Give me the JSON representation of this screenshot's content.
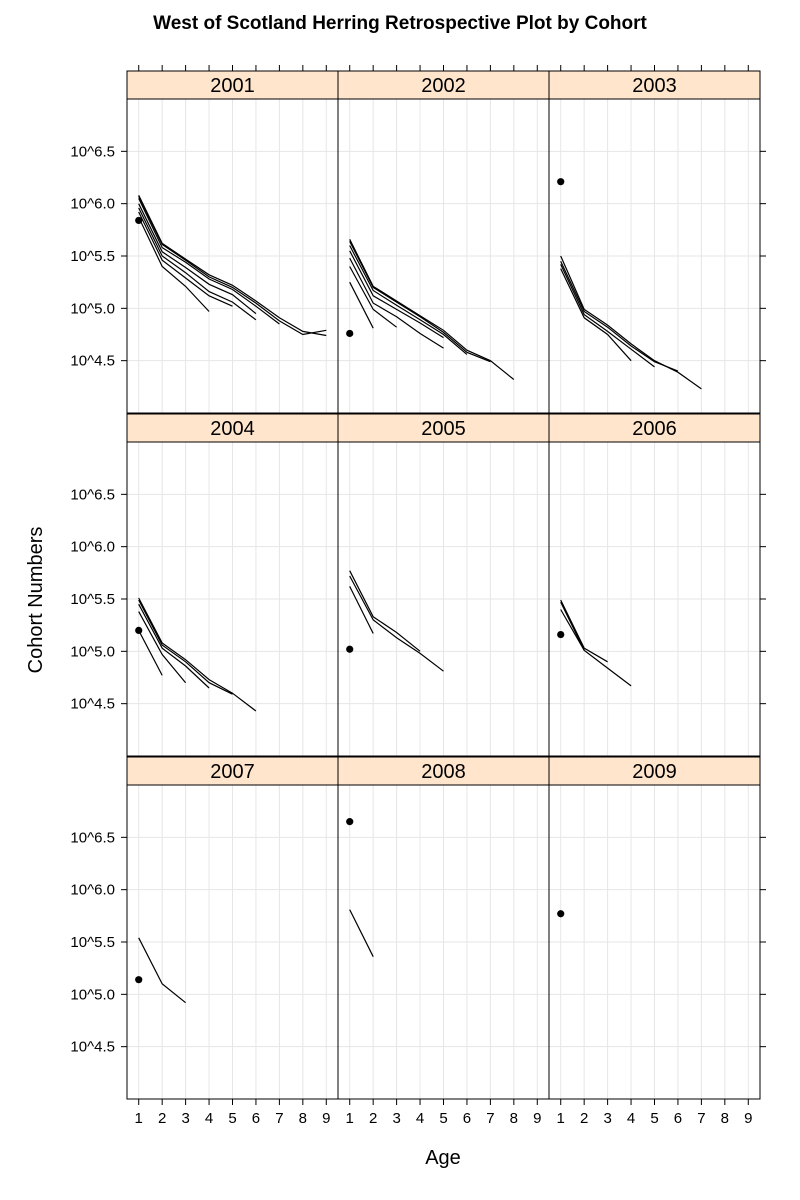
{
  "chart_data": {
    "type": "line",
    "title": "West of Scotland Herring Retrospective Plot by Cohort",
    "xlabel": "Age",
    "ylabel": "Cohort Numbers",
    "x_ticks": [
      1,
      2,
      3,
      4,
      5,
      6,
      7,
      8,
      9
    ],
    "xlim": [
      0.5,
      9.5
    ],
    "y_ticks": [
      4.5,
      5.0,
      5.5,
      6.0,
      6.5
    ],
    "y_tick_labels": [
      "10^4.5",
      "10^5.0",
      "10^5.5",
      "10^6.0",
      "10^6.5"
    ],
    "ylim": [
      4.0,
      7.0
    ],
    "y_scale": "log10",
    "grid": true,
    "colors": {
      "line": "#000000",
      "strip": "#ffe5cc",
      "grid": "#e6e6e6",
      "frame": "#000000"
    },
    "panels": [
      {
        "label": "2001",
        "points": [
          {
            "x": 1,
            "y": 5.84
          }
        ],
        "lines": [
          [
            [
              1,
              6.08
            ],
            [
              2,
              5.62
            ],
            [
              3,
              5.47
            ],
            [
              4,
              5.32
            ],
            [
              5,
              5.22
            ],
            [
              6,
              5.07
            ],
            [
              7,
              4.91
            ],
            [
              8,
              4.78
            ],
            [
              9,
              4.74
            ]
          ],
          [
            [
              1,
              6.07
            ],
            [
              2,
              5.61
            ],
            [
              3,
              5.46
            ],
            [
              4,
              5.3
            ],
            [
              5,
              5.2
            ],
            [
              6,
              5.05
            ],
            [
              7,
              4.88
            ],
            [
              8,
              4.75
            ],
            [
              9,
              4.79
            ]
          ],
          [
            [
              1,
              6.05
            ],
            [
              2,
              5.58
            ],
            [
              3,
              5.44
            ],
            [
              4,
              5.28
            ],
            [
              5,
              5.18
            ],
            [
              6,
              5.02
            ],
            [
              7,
              4.85
            ]
          ],
          [
            [
              1,
              6.0
            ],
            [
              2,
              5.54
            ],
            [
              3,
              5.39
            ],
            [
              4,
              5.23
            ],
            [
              5,
              5.13
            ],
            [
              6,
              4.95
            ]
          ],
          [
            [
              1,
              5.96
            ],
            [
              2,
              5.5
            ],
            [
              3,
              5.34
            ],
            [
              4,
              5.16
            ],
            [
              5,
              5.06
            ],
            [
              6,
              4.89
            ]
          ],
          [
            [
              1,
              5.92
            ],
            [
              2,
              5.46
            ],
            [
              3,
              5.29
            ],
            [
              4,
              5.12
            ],
            [
              5,
              5.02
            ]
          ],
          [
            [
              1,
              5.87
            ],
            [
              2,
              5.4
            ],
            [
              3,
              5.21
            ],
            [
              4,
              4.97
            ]
          ]
        ]
      },
      {
        "label": "2002",
        "points": [
          {
            "x": 1,
            "y": 4.76
          }
        ],
        "lines": [
          [
            [
              1,
              5.66
            ],
            [
              2,
              5.21
            ],
            [
              3,
              5.07
            ],
            [
              4,
              4.93
            ],
            [
              5,
              4.79
            ],
            [
              6,
              4.6
            ],
            [
              7,
              4.5
            ],
            [
              8,
              4.32
            ]
          ],
          [
            [
              1,
              5.64
            ],
            [
              2,
              5.2
            ],
            [
              3,
              5.06
            ],
            [
              4,
              4.92
            ],
            [
              5,
              4.77
            ],
            [
              6,
              4.58
            ],
            [
              7,
              4.49
            ]
          ],
          [
            [
              1,
              5.6
            ],
            [
              2,
              5.17
            ],
            [
              3,
              5.03
            ],
            [
              4,
              4.89
            ],
            [
              5,
              4.75
            ],
            [
              6,
              4.56
            ]
          ],
          [
            [
              1,
              5.55
            ],
            [
              2,
              5.12
            ],
            [
              3,
              4.99
            ],
            [
              4,
              4.86
            ],
            [
              5,
              4.72
            ]
          ],
          [
            [
              1,
              5.48
            ],
            [
              2,
              5.05
            ],
            [
              3,
              4.92
            ],
            [
              4,
              4.76
            ],
            [
              5,
              4.62
            ]
          ],
          [
            [
              1,
              5.4
            ],
            [
              2,
              4.99
            ],
            [
              3,
              4.82
            ]
          ],
          [
            [
              1,
              5.25
            ],
            [
              2,
              4.81
            ]
          ]
        ]
      },
      {
        "label": "2003",
        "points": [
          {
            "x": 1,
            "y": 6.21
          }
        ],
        "lines": [
          [
            [
              1,
              5.5
            ],
            [
              2,
              4.99
            ],
            [
              3,
              4.84
            ],
            [
              4,
              4.66
            ],
            [
              5,
              4.5
            ],
            [
              6,
              4.39
            ],
            [
              7,
              4.23
            ]
          ],
          [
            [
              1,
              5.45
            ],
            [
              2,
              4.97
            ],
            [
              3,
              4.82
            ],
            [
              4,
              4.64
            ],
            [
              5,
              4.49
            ],
            [
              6,
              4.4
            ]
          ],
          [
            [
              1,
              5.42
            ],
            [
              2,
              4.94
            ],
            [
              3,
              4.78
            ],
            [
              4,
              4.61
            ],
            [
              5,
              4.44
            ]
          ],
          [
            [
              1,
              5.38
            ],
            [
              2,
              4.91
            ],
            [
              3,
              4.75
            ],
            [
              4,
              4.5
            ]
          ]
        ]
      },
      {
        "label": "2004",
        "points": [
          {
            "x": 1,
            "y": 5.2
          }
        ],
        "lines": [
          [
            [
              1,
              5.51
            ],
            [
              2,
              5.08
            ],
            [
              3,
              4.92
            ],
            [
              4,
              4.73
            ],
            [
              5,
              4.6
            ],
            [
              6,
              4.43
            ]
          ],
          [
            [
              1,
              5.49
            ],
            [
              2,
              5.06
            ],
            [
              3,
              4.9
            ],
            [
              4,
              4.7
            ],
            [
              5,
              4.59
            ]
          ],
          [
            [
              1,
              5.45
            ],
            [
              2,
              5.03
            ],
            [
              3,
              4.86
            ],
            [
              4,
              4.65
            ]
          ],
          [
            [
              1,
              5.38
            ],
            [
              2,
              4.97
            ],
            [
              3,
              4.7
            ]
          ],
          [
            [
              1,
              5.2
            ],
            [
              2,
              4.77
            ]
          ]
        ]
      },
      {
        "label": "2005",
        "points": [
          {
            "x": 1,
            "y": 5.02
          }
        ],
        "lines": [
          [
            [
              1,
              5.77
            ],
            [
              2,
              5.33
            ],
            [
              3,
              5.18
            ],
            [
              4,
              5.0
            ]
          ],
          [
            [
              1,
              5.72
            ],
            [
              2,
              5.3
            ],
            [
              3,
              5.13
            ],
            [
              4,
              4.98
            ],
            [
              5,
              4.81
            ]
          ],
          [
            [
              1,
              5.62
            ],
            [
              2,
              5.17
            ]
          ]
        ]
      },
      {
        "label": "2006",
        "points": [
          {
            "x": 1,
            "y": 5.16
          }
        ],
        "lines": [
          [
            [
              1,
              5.49
            ],
            [
              2,
              5.03
            ],
            [
              3,
              4.9
            ]
          ],
          [
            [
              1,
              5.47
            ],
            [
              2,
              5.01
            ],
            [
              3,
              4.84
            ],
            [
              4,
              4.67
            ]
          ],
          [
            [
              1,
              5.4
            ],
            [
              2,
              5.01
            ]
          ]
        ]
      },
      {
        "label": "2007",
        "points": [
          {
            "x": 1,
            "y": 5.14
          }
        ],
        "lines": [
          [
            [
              1,
              5.54
            ],
            [
              2,
              5.1
            ],
            [
              3,
              4.92
            ]
          ]
        ]
      },
      {
        "label": "2008",
        "points": [
          {
            "x": 1,
            "y": 6.65
          }
        ],
        "lines": [
          [
            [
              1,
              5.81
            ],
            [
              2,
              5.36
            ]
          ]
        ]
      },
      {
        "label": "2009",
        "points": [
          {
            "x": 1,
            "y": 5.77
          }
        ],
        "lines": []
      }
    ]
  }
}
